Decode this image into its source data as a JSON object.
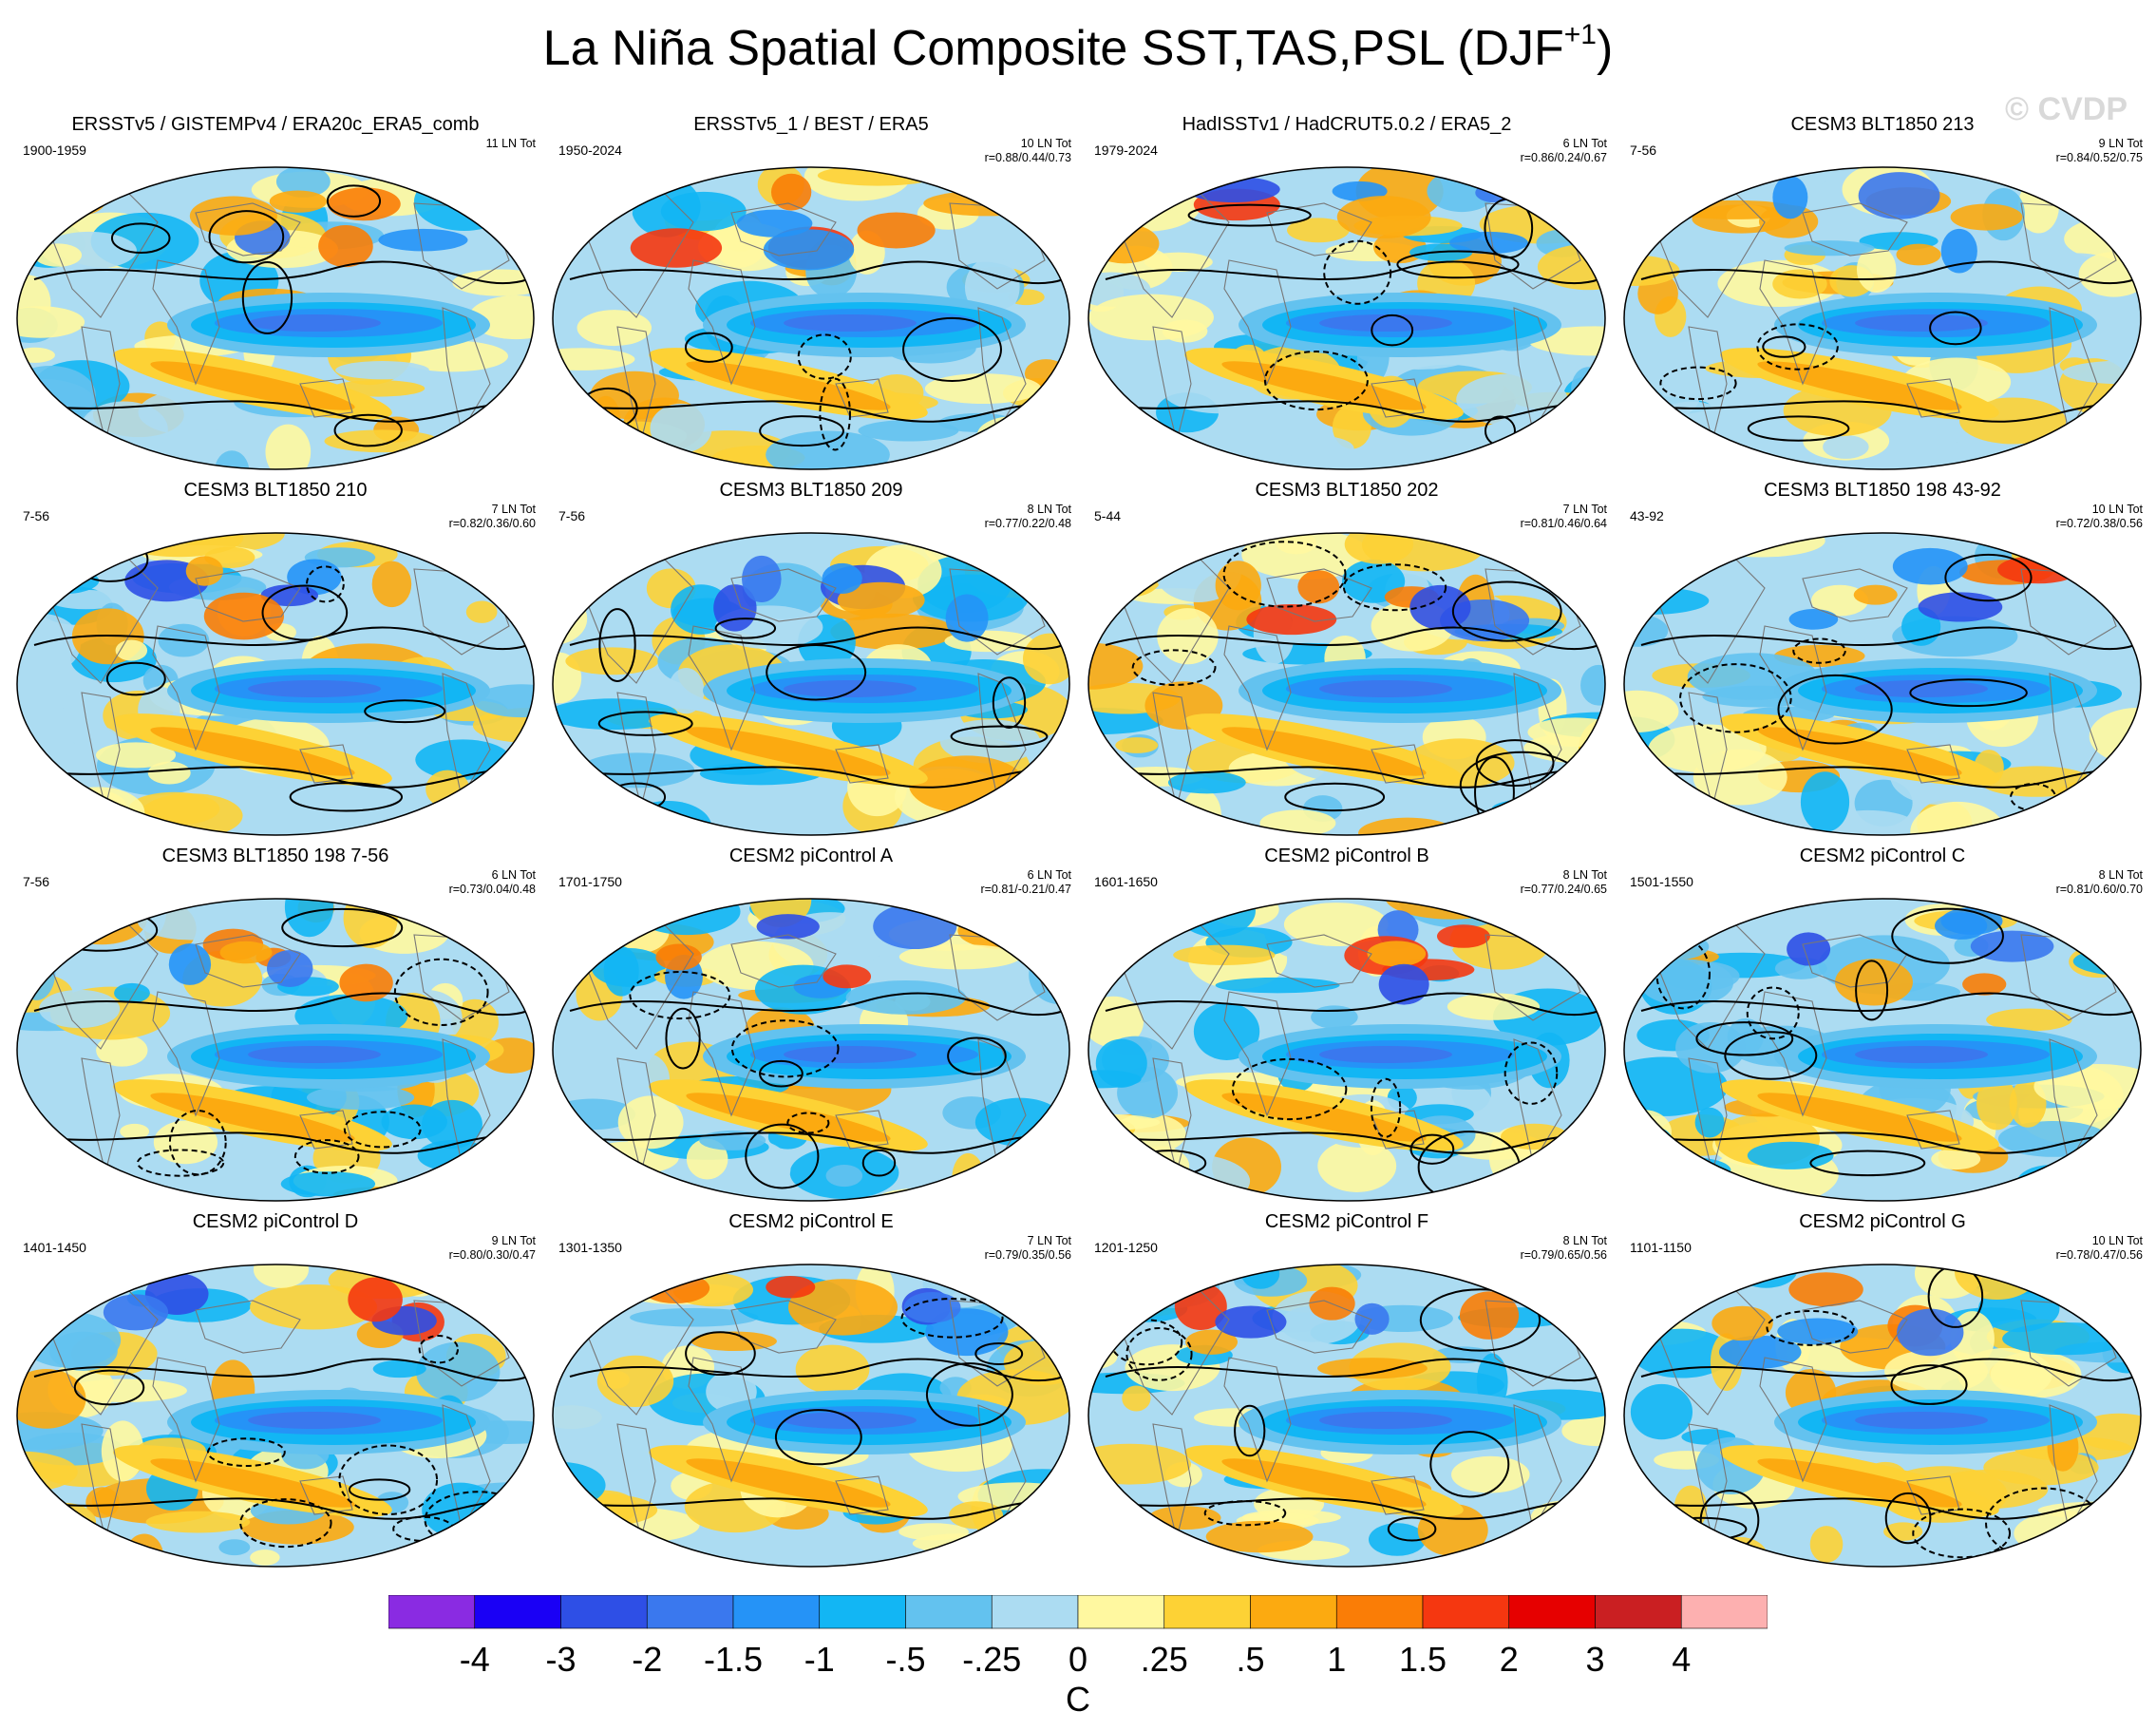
{
  "title": {
    "main": "La Niña Spatial Composite SST,TAS,PSL (DJF",
    "sup": "+1",
    "close": ")"
  },
  "watermark": "© CVDP",
  "chart_data": {
    "type": "heatmap",
    "description_note": "Spatial composite maps; shading = SST/TAS anomaly, contours = PSL anomaly (solid positive, dashed negative)",
    "panels": [
      {
        "title": "ERSSTv5 / GISTEMPv4 / ERA20c_ERA5_comb",
        "period": "1900-1959",
        "count": "11 LN Tot",
        "stats": ""
      },
      {
        "title": "ERSSTv5_1 / BEST / ERA5",
        "period": "1950-2024",
        "count": "10 LN Tot",
        "stats": "r=0.88/0.44/0.73"
      },
      {
        "title": "HadISSTv1 / HadCRUT5.0.2 / ERA5_2",
        "period": "1979-2024",
        "count": "6 LN Tot",
        "stats": "r=0.86/0.24/0.67"
      },
      {
        "title": "CESM3 BLT1850 213",
        "period": "7-56",
        "count": "9 LN Tot",
        "stats": "r=0.84/0.52/0.75"
      },
      {
        "title": "CESM3 BLT1850 210",
        "period": "7-56",
        "count": "7 LN Tot",
        "stats": "r=0.82/0.36/0.60"
      },
      {
        "title": "CESM3 BLT1850 209",
        "period": "7-56",
        "count": "8 LN Tot",
        "stats": "r=0.77/0.22/0.48"
      },
      {
        "title": "CESM3 BLT1850 202",
        "period": "5-44",
        "count": "7 LN Tot",
        "stats": "r=0.81/0.46/0.64"
      },
      {
        "title": "CESM3 BLT1850 198 43-92",
        "period": "43-92",
        "count": "10 LN Tot",
        "stats": "r=0.72/0.38/0.56"
      },
      {
        "title": "CESM3 BLT1850 198 7-56",
        "period": "7-56",
        "count": "6 LN Tot",
        "stats": "r=0.73/0.04/0.48"
      },
      {
        "title": "CESM2 piControl A",
        "period": "1701-1750",
        "count": "6 LN Tot",
        "stats": "r=0.81/-0.21/0.47"
      },
      {
        "title": "CESM2 piControl B",
        "period": "1601-1650",
        "count": "8 LN Tot",
        "stats": "r=0.77/0.24/0.65"
      },
      {
        "title": "CESM2 piControl C",
        "period": "1501-1550",
        "count": "8 LN Tot",
        "stats": "r=0.81/0.60/0.70"
      },
      {
        "title": "CESM2 piControl D",
        "period": "1401-1450",
        "count": "9 LN Tot",
        "stats": "r=0.80/0.30/0.47"
      },
      {
        "title": "CESM2 piControl E",
        "period": "1301-1350",
        "count": "7 LN Tot",
        "stats": "r=0.79/0.35/0.56"
      },
      {
        "title": "CESM2 piControl F",
        "period": "1201-1250",
        "count": "8 LN Tot",
        "stats": "r=0.79/0.65/0.56"
      },
      {
        "title": "CESM2 piControl G",
        "period": "1101-1150",
        "count": "10 LN Tot",
        "stats": "r=0.78/0.47/0.56"
      }
    ],
    "colorbar": {
      "labels": [
        "-4",
        "-3",
        "-2",
        "-1.5",
        "-1",
        "-.5",
        "-.25",
        "0",
        ".25",
        ".5",
        "1",
        "1.5",
        "2",
        "3",
        "4"
      ],
      "colors": [
        "#8a2be2",
        "#1a00f5",
        "#2e4fe6",
        "#3a78ee",
        "#2593f7",
        "#12b6f4",
        "#63c2ef",
        "#acdcf2",
        "#fff8a0",
        "#fdd235",
        "#fcaa10",
        "#fa7d06",
        "#f53710",
        "#e60000",
        "#ca1f22",
        "#fdb0b0"
      ],
      "unit": "C"
    }
  }
}
